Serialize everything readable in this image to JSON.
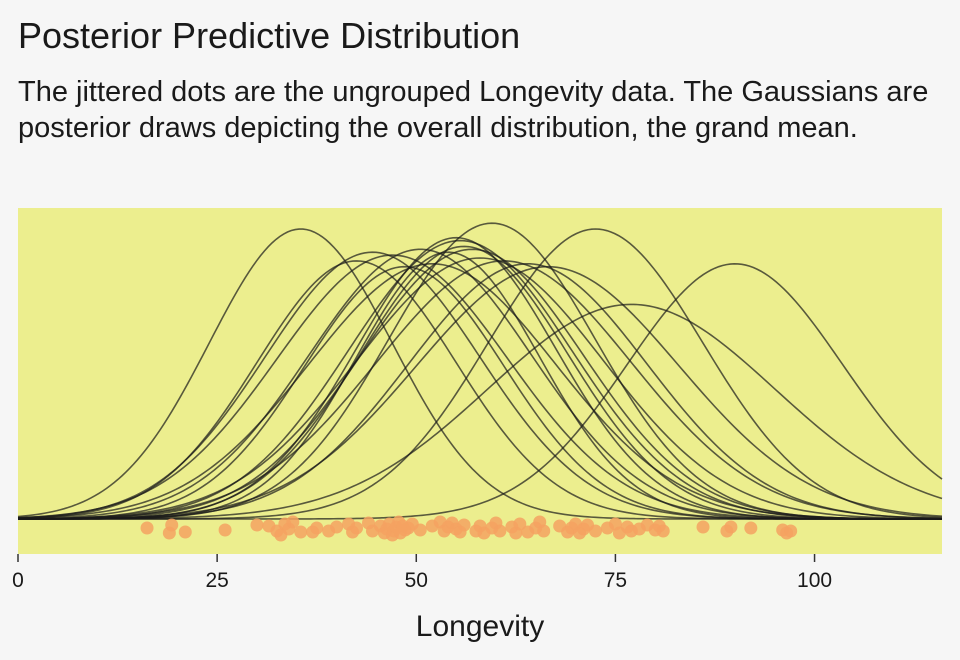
{
  "header": {
    "title": "Posterior Predictive Distribution",
    "subtitle": "The jittered dots are the ungrouped Longevity data. The Gaussians are posterior draws depicting the overall distribution, the grand mean."
  },
  "colors": {
    "panel": "#ecee8e",
    "curve": "#1a1a1a",
    "dot": "#f4a261"
  },
  "chart_data": {
    "type": "density_curves_with_jittered_points",
    "title": "Posterior Predictive Distribution",
    "xlabel": "Longevity",
    "ylabel": "",
    "xlim": [
      0,
      116
    ],
    "x_ticks": [
      0,
      25,
      50,
      75,
      100
    ],
    "x_tick_labels": [
      "0",
      "25",
      "50",
      "75",
      "100"
    ],
    "grid": false,
    "curves": [
      {
        "mean": 35.5,
        "sd": 11.5,
        "peak": 1.0
      },
      {
        "mean": 42.5,
        "sd": 12.5,
        "peak": 0.89
      },
      {
        "mean": 44.5,
        "sd": 13.5,
        "peak": 0.92
      },
      {
        "mean": 47.0,
        "sd": 14.5,
        "peak": 0.91
      },
      {
        "mean": 48.5,
        "sd": 12.5,
        "peak": 0.87
      },
      {
        "mean": 50.5,
        "sd": 14.0,
        "peak": 0.93
      },
      {
        "mean": 52.0,
        "sd": 15.5,
        "peak": 0.88
      },
      {
        "mean": 54.0,
        "sd": 11.5,
        "peak": 0.92
      },
      {
        "mean": 55.0,
        "sd": 12.5,
        "peak": 0.97
      },
      {
        "mean": 55.5,
        "sd": 14.0,
        "peak": 0.96
      },
      {
        "mean": 56.0,
        "sd": 13.0,
        "peak": 0.94
      },
      {
        "mean": 57.0,
        "sd": 14.0,
        "peak": 0.93
      },
      {
        "mean": 58.0,
        "sd": 15.5,
        "peak": 0.9
      },
      {
        "mean": 59.5,
        "sd": 13.0,
        "peak": 1.02
      },
      {
        "mean": 61.0,
        "sd": 16.0,
        "peak": 0.89
      },
      {
        "mean": 64.0,
        "sd": 15.0,
        "peak": 0.88
      },
      {
        "mean": 66.5,
        "sd": 16.5,
        "peak": 0.87
      },
      {
        "mean": 72.5,
        "sd": 13.5,
        "peak": 1.0
      },
      {
        "mean": 77.0,
        "sd": 18.0,
        "peak": 0.74
      },
      {
        "mean": 90.0,
        "sd": 13.5,
        "peak": 0.88
      }
    ],
    "points": [
      {
        "x": 16.2,
        "jitter": 0.3
      },
      {
        "x": 19.0,
        "jitter": 0.55
      },
      {
        "x": 19.3,
        "jitter": 0.15
      },
      {
        "x": 21.0,
        "jitter": 0.5
      },
      {
        "x": 26.0,
        "jitter": 0.4
      },
      {
        "x": 30.0,
        "jitter": 0.15
      },
      {
        "x": 31.5,
        "jitter": 0.2
      },
      {
        "x": 32.5,
        "jitter": 0.45
      },
      {
        "x": 33.0,
        "jitter": 0.65
      },
      {
        "x": 33.5,
        "jitter": 0.1
      },
      {
        "x": 34.0,
        "jitter": 0.35
      },
      {
        "x": 34.5,
        "jitter": 0.0
      },
      {
        "x": 35.5,
        "jitter": 0.5
      },
      {
        "x": 37.0,
        "jitter": 0.5
      },
      {
        "x": 37.5,
        "jitter": 0.3
      },
      {
        "x": 39.0,
        "jitter": 0.45
      },
      {
        "x": 40.0,
        "jitter": 0.25
      },
      {
        "x": 41.5,
        "jitter": 0.1
      },
      {
        "x": 42.0,
        "jitter": 0.5
      },
      {
        "x": 42.5,
        "jitter": 0.3
      },
      {
        "x": 44.0,
        "jitter": 0.05
      },
      {
        "x": 44.5,
        "jitter": 0.45
      },
      {
        "x": 45.5,
        "jitter": 0.2
      },
      {
        "x": 46.0,
        "jitter": 0.55
      },
      {
        "x": 46.3,
        "jitter": 0.35
      },
      {
        "x": 46.6,
        "jitter": 0.1
      },
      {
        "x": 47.0,
        "jitter": 0.65
      },
      {
        "x": 47.2,
        "jitter": 0.45
      },
      {
        "x": 47.5,
        "jitter": 0.25
      },
      {
        "x": 47.8,
        "jitter": 0.0
      },
      {
        "x": 48.0,
        "jitter": 0.55
      },
      {
        "x": 48.3,
        "jitter": 0.2
      },
      {
        "x": 48.6,
        "jitter": 0.4
      },
      {
        "x": 49.0,
        "jitter": 0.3
      },
      {
        "x": 49.5,
        "jitter": 0.1
      },
      {
        "x": 50.5,
        "jitter": 0.4
      },
      {
        "x": 52.0,
        "jitter": 0.2
      },
      {
        "x": 53.0,
        "jitter": 0.0
      },
      {
        "x": 53.5,
        "jitter": 0.45
      },
      {
        "x": 54.0,
        "jitter": 0.25
      },
      {
        "x": 54.5,
        "jitter": 0.05
      },
      {
        "x": 55.0,
        "jitter": 0.35
      },
      {
        "x": 55.5,
        "jitter": 0.5
      },
      {
        "x": 56.0,
        "jitter": 0.15
      },
      {
        "x": 57.5,
        "jitter": 0.45
      },
      {
        "x": 58.0,
        "jitter": 0.2
      },
      {
        "x": 58.5,
        "jitter": 0.55
      },
      {
        "x": 59.5,
        "jitter": 0.3
      },
      {
        "x": 60.0,
        "jitter": 0.05
      },
      {
        "x": 60.5,
        "jitter": 0.45
      },
      {
        "x": 62.0,
        "jitter": 0.25
      },
      {
        "x": 62.5,
        "jitter": 0.55
      },
      {
        "x": 63.0,
        "jitter": 0.1
      },
      {
        "x": 64.0,
        "jitter": 0.5
      },
      {
        "x": 65.0,
        "jitter": 0.3
      },
      {
        "x": 65.5,
        "jitter": 0.0
      },
      {
        "x": 66.0,
        "jitter": 0.45
      },
      {
        "x": 68.0,
        "jitter": 0.2
      },
      {
        "x": 69.0,
        "jitter": 0.5
      },
      {
        "x": 69.5,
        "jitter": 0.3
      },
      {
        "x": 70.0,
        "jitter": 0.1
      },
      {
        "x": 70.5,
        "jitter": 0.55
      },
      {
        "x": 71.0,
        "jitter": 0.35
      },
      {
        "x": 71.5,
        "jitter": 0.15
      },
      {
        "x": 72.5,
        "jitter": 0.45
      },
      {
        "x": 74.0,
        "jitter": 0.3
      },
      {
        "x": 75.0,
        "jitter": 0.1
      },
      {
        "x": 75.5,
        "jitter": 0.55
      },
      {
        "x": 76.5,
        "jitter": 0.25
      },
      {
        "x": 77.0,
        "jitter": 0.45
      },
      {
        "x": 78.0,
        "jitter": 0.35
      },
      {
        "x": 79.0,
        "jitter": 0.15
      },
      {
        "x": 80.0,
        "jitter": 0.4
      },
      {
        "x": 80.5,
        "jitter": 0.2
      },
      {
        "x": 81.0,
        "jitter": 0.45
      },
      {
        "x": 86.0,
        "jitter": 0.25
      },
      {
        "x": 89.0,
        "jitter": 0.45
      },
      {
        "x": 89.5,
        "jitter": 0.25
      },
      {
        "x": 92.0,
        "jitter": 0.3
      },
      {
        "x": 96.0,
        "jitter": 0.4
      },
      {
        "x": 96.5,
        "jitter": 0.55
      },
      {
        "x": 97.0,
        "jitter": 0.45
      }
    ]
  }
}
